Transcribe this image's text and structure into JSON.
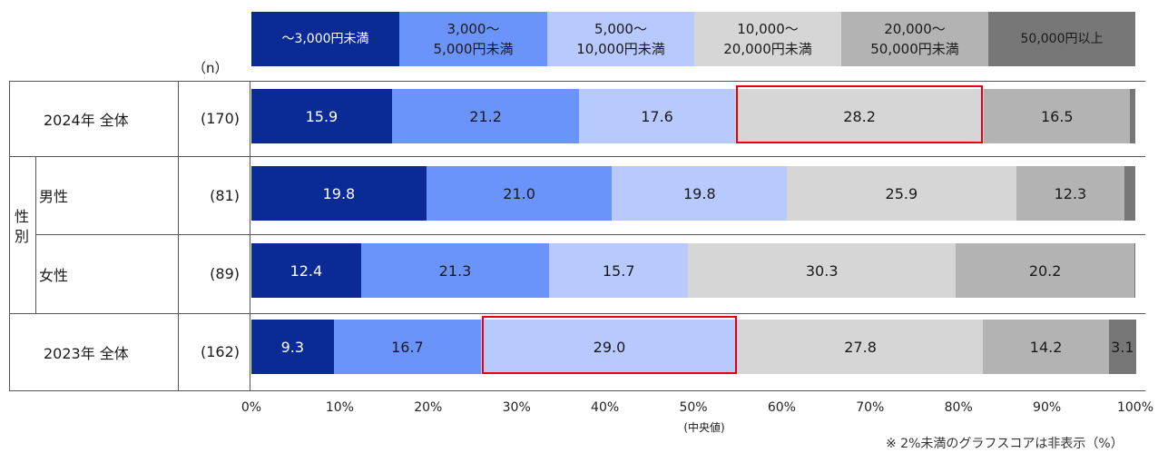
{
  "chart_data": {
    "type": "bar",
    "orientation": "horizontal",
    "stacked": true,
    "legend": [
      {
        "line1": "～3,000円未満",
        "line2": "",
        "color": "#0a2a96",
        "text": "#ffffff"
      },
      {
        "line1": "3,000～",
        "line2": "5,000円未満",
        "color": "#6b94fb",
        "text": "#1a1a1a"
      },
      {
        "line1": "5,000～",
        "line2": "10,000円未満",
        "color": "#b8c9fd",
        "text": "#1a1a1a"
      },
      {
        "line1": "10,000～",
        "line2": "20,000円未満",
        "color": "#d6d6d6",
        "text": "#1a1a1a"
      },
      {
        "line1": "20,000～",
        "line2": "50,000円未満",
        "color": "#b3b3b3",
        "text": "#1a1a1a"
      },
      {
        "line1": "50,000円以上",
        "line2": "",
        "color": "#777777",
        "text": "#1a1a1a"
      }
    ],
    "n_header": "（n）",
    "group_label": "性\n別",
    "rows": [
      {
        "label": "2024年 全体",
        "n": "(170)",
        "values": [
          15.9,
          21.2,
          17.6,
          28.2,
          16.5,
          0.6
        ],
        "labels": [
          "15.9",
          "21.2",
          "17.6",
          "28.2",
          "16.5",
          ""
        ],
        "highlight": 3
      },
      {
        "label": "男性",
        "n": "(81)",
        "values": [
          19.8,
          21.0,
          19.8,
          25.9,
          12.3,
          1.2
        ],
        "labels": [
          "19.8",
          "21.0",
          "19.8",
          "25.9",
          "12.3",
          ""
        ],
        "highlight": -1
      },
      {
        "label": "女性",
        "n": "(89)",
        "values": [
          12.4,
          21.3,
          15.7,
          30.3,
          20.2,
          0.1
        ],
        "labels": [
          "12.4",
          "21.3",
          "15.7",
          "30.3",
          "20.2",
          ""
        ],
        "highlight": -1
      },
      {
        "label": "2023年 全体",
        "n": "(162)",
        "values": [
          9.3,
          16.7,
          29.0,
          27.8,
          14.2,
          3.1
        ],
        "labels": [
          "9.3",
          "16.7",
          "29.0",
          "27.8",
          "14.2",
          "3.1"
        ],
        "highlight": 2
      }
    ],
    "x_ticks": [
      "0%",
      "10%",
      "20%",
      "30%",
      "40%",
      "50%",
      "60%",
      "70%",
      "80%",
      "90%",
      "100%"
    ],
    "median_label": "(中央値)",
    "xlim": [
      0,
      100
    ],
    "highlight_color": "#e60012",
    "note": "※ 2%未満のグラフスコアは非表示（%）"
  }
}
